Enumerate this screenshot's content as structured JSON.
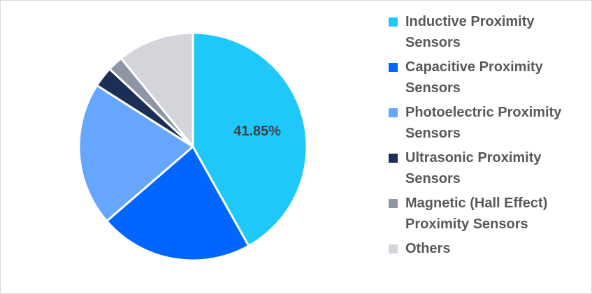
{
  "chart_data": {
    "type": "pie",
    "title": "",
    "categories": [
      "Inductive Proximity Sensors",
      "Capacitive Proximity Sensors",
      "Photoelectric Proximity Sensors",
      "Ultrasonic Proximity Sensors",
      "Magnetic (Hall Effect) Proximity Sensors",
      "Others"
    ],
    "values": [
      41.85,
      21.8,
      20.4,
      2.9,
      2.2,
      10.85
    ],
    "colors": [
      "#1ec8fa",
      "#0066ff",
      "#66a6ff",
      "#1b2e55",
      "#8e96a6",
      "#d3d5db"
    ],
    "data_labels": [
      {
        "category": "Inductive Proximity Sensors",
        "text": "41.85%"
      }
    ],
    "legend_position": "right",
    "start_angle": 0,
    "direction": "clockwise"
  },
  "legend": {
    "items": [
      {
        "label": "Inductive Proximity Sensors",
        "color": "#1ec8fa"
      },
      {
        "label": "Capacitive Proximity Sensors",
        "color": "#0066ff"
      },
      {
        "label": "Photoelectric Proximity Sensors",
        "color": "#66a6ff"
      },
      {
        "label": "Ultrasonic Proximity Sensors",
        "color": "#1b2e55"
      },
      {
        "label": "Magnetic (Hall Effect) Proximity Sensors",
        "color": "#8e96a6"
      },
      {
        "label": "Others",
        "color": "#d3d5db"
      }
    ]
  },
  "pie_label": "41.85%"
}
